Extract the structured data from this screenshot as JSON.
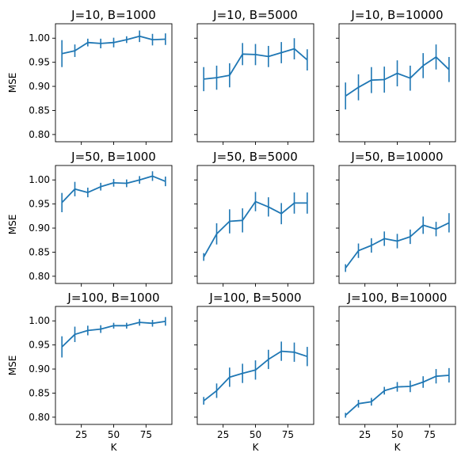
{
  "chart_data": {
    "type": "line",
    "layout": "3x3 grid of subplots, shared x and shared y within rows",
    "series_color": "#1f77b4",
    "error_bars": true,
    "grid": false,
    "legend": "none",
    "x": [
      10,
      20,
      30,
      40,
      50,
      60,
      70,
      80,
      90
    ],
    "xlim": [
      5,
      95
    ],
    "ylim": [
      0.785,
      1.03
    ],
    "xticks": [
      25,
      50,
      75
    ],
    "yticks": [
      0.8,
      0.85,
      0.9,
      0.95,
      1.0
    ],
    "xlabel": "K",
    "ylabel": "MSE",
    "panels": [
      {
        "title": "J=10, B=1000",
        "values": [
          0.968,
          0.974,
          0.991,
          0.989,
          0.991,
          0.997,
          1.004,
          0.997,
          0.998
        ],
        "errors": [
          0.028,
          0.013,
          0.008,
          0.01,
          0.01,
          0.007,
          0.012,
          0.012,
          0.012
        ]
      },
      {
        "title": "J=10, B=5000",
        "values": [
          0.915,
          0.918,
          0.923,
          0.967,
          0.966,
          0.962,
          0.97,
          0.978,
          0.955
        ],
        "errors": [
          0.025,
          0.025,
          0.025,
          0.023,
          0.022,
          0.022,
          0.022,
          0.022,
          0.022
        ]
      },
      {
        "title": "J=10, B=10000",
        "values": [
          0.88,
          0.898,
          0.913,
          0.914,
          0.927,
          0.917,
          0.943,
          0.961,
          0.935
        ],
        "errors": [
          0.028,
          0.027,
          0.027,
          0.027,
          0.027,
          0.026,
          0.026,
          0.026,
          0.026
        ]
      },
      {
        "title": "J=50, B=1000",
        "values": [
          0.953,
          0.981,
          0.974,
          0.986,
          0.994,
          0.993,
          1.0,
          1.008,
          0.997
        ],
        "errors": [
          0.02,
          0.015,
          0.01,
          0.008,
          0.008,
          0.008,
          0.008,
          0.01,
          0.01
        ]
      },
      {
        "title": "J=50, B=5000",
        "values": [
          0.84,
          0.888,
          0.914,
          0.916,
          0.955,
          0.944,
          0.93,
          0.952,
          0.952
        ],
        "errors": [
          0.008,
          0.022,
          0.025,
          0.025,
          0.02,
          0.02,
          0.022,
          0.022,
          0.022
        ]
      },
      {
        "title": "J=50, B=10000",
        "values": [
          0.817,
          0.853,
          0.864,
          0.878,
          0.873,
          0.882,
          0.906,
          0.898,
          0.911
        ],
        "errors": [
          0.008,
          0.015,
          0.015,
          0.015,
          0.015,
          0.015,
          0.018,
          0.015,
          0.02
        ]
      },
      {
        "title": "J=100, B=1000",
        "values": [
          0.946,
          0.972,
          0.98,
          0.983,
          0.99,
          0.99,
          0.997,
          0.995,
          0.999
        ],
        "errors": [
          0.022,
          0.016,
          0.01,
          0.008,
          0.006,
          0.006,
          0.007,
          0.007,
          0.009
        ]
      },
      {
        "title": "J=100, B=5000",
        "values": [
          0.834,
          0.855,
          0.883,
          0.891,
          0.898,
          0.92,
          0.937,
          0.935,
          0.926
        ],
        "errors": [
          0.008,
          0.015,
          0.02,
          0.02,
          0.02,
          0.02,
          0.02,
          0.02,
          0.02
        ]
      },
      {
        "title": "J=100, B=10000",
        "values": [
          0.804,
          0.828,
          0.832,
          0.855,
          0.863,
          0.864,
          0.873,
          0.885,
          0.887
        ],
        "errors": [
          0.005,
          0.008,
          0.008,
          0.008,
          0.01,
          0.012,
          0.012,
          0.015,
          0.015
        ]
      }
    ]
  }
}
